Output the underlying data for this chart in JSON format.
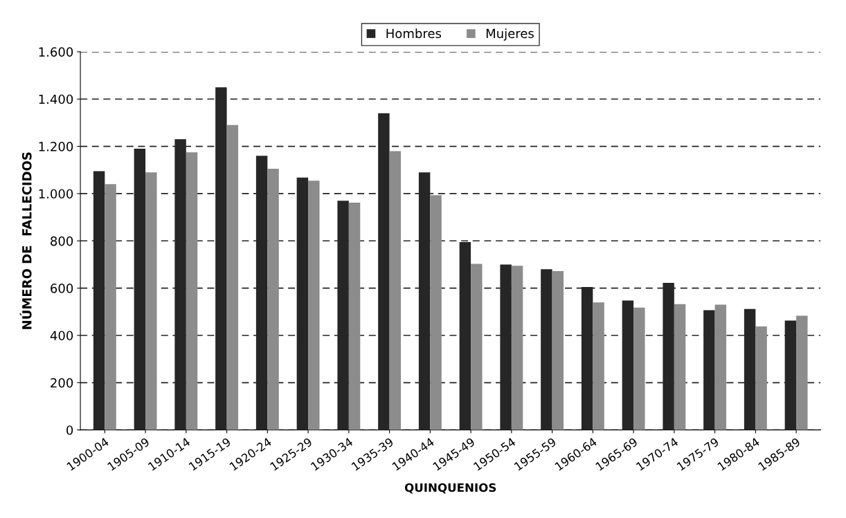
{
  "chart_data": {
    "type": "bar",
    "xlabel": "QUINQUENIOS",
    "ylabel": "NÚMERO DE  FALLECIDOS",
    "categories": [
      "1900-04",
      "1905-09",
      "1910-14",
      "1915-19",
      "1920-24",
      "1925-29",
      "1930-34",
      "1935-39",
      "1940-44",
      "1945-49",
      "1950-54",
      "1955-59",
      "1960-64",
      "1965-69",
      "1970-74",
      "1975-79",
      "1980-84",
      "1985-89"
    ],
    "series": [
      {
        "name": "Hombres",
        "color": "#262626",
        "values": [
          1095,
          1190,
          1230,
          1450,
          1160,
          1068,
          970,
          1340,
          1090,
          795,
          700,
          680,
          605,
          548,
          622,
          507,
          512,
          463
        ]
      },
      {
        "name": "Mujeres",
        "color": "#8c8c8c",
        "values": [
          1040,
          1090,
          1175,
          1290,
          1105,
          1055,
          962,
          1180,
          993,
          703,
          695,
          672,
          540,
          518,
          532,
          530,
          438,
          483
        ]
      }
    ],
    "ylim": [
      0,
      1600
    ],
    "yticks": [
      0,
      200,
      400,
      600,
      800,
      {
        "value": 1000,
        "label": "1.000"
      },
      {
        "value": 1200,
        "label": "1.200"
      },
      {
        "value": 1400,
        "label": "1.400"
      },
      {
        "value": 1600,
        "label": "1.600"
      }
    ],
    "grid": "y",
    "legend": "top"
  }
}
